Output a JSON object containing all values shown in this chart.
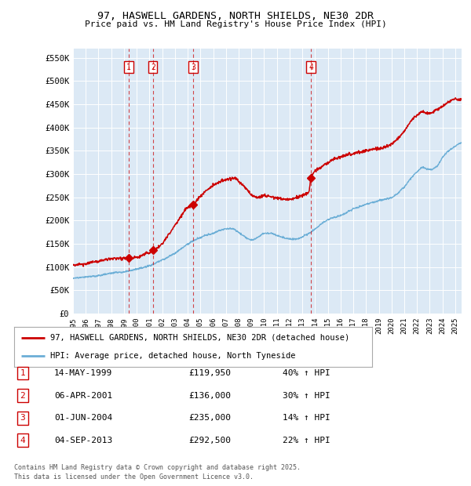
{
  "title": "97, HASWELL GARDENS, NORTH SHIELDS, NE30 2DR",
  "subtitle": "Price paid vs. HM Land Registry's House Price Index (HPI)",
  "ylim": [
    0,
    570000
  ],
  "yticks": [
    0,
    50000,
    100000,
    150000,
    200000,
    250000,
    300000,
    350000,
    400000,
    450000,
    500000,
    550000
  ],
  "ytick_labels": [
    "£0",
    "£50K",
    "£100K",
    "£150K",
    "£200K",
    "£250K",
    "£300K",
    "£350K",
    "£400K",
    "£450K",
    "£500K",
    "£550K"
  ],
  "hpi_color": "#6baed6",
  "price_color": "#cc0000",
  "plot_bg": "#dce9f5",
  "xmin": 1995,
  "xmax": 2025.5,
  "purchases": [
    {
      "label": "1",
      "date": "14-MAY-1999",
      "price": 119950,
      "price_str": "£119,950",
      "pct": "40%",
      "x_year": 1999.37
    },
    {
      "label": "2",
      "date": "06-APR-2001",
      "price": 136000,
      "price_str": "£136,000",
      "pct": "30%",
      "x_year": 2001.27
    },
    {
      "label": "3",
      "date": "01-JUN-2004",
      "price": 235000,
      "price_str": "£235,000",
      "pct": "14%",
      "x_year": 2004.42
    },
    {
      "label": "4",
      "date": "04-SEP-2013",
      "price": 292500,
      "price_str": "£292,500",
      "pct": "22%",
      "x_year": 2013.67
    }
  ],
  "legend_property": "97, HASWELL GARDENS, NORTH SHIELDS, NE30 2DR (detached house)",
  "legend_hpi": "HPI: Average price, detached house, North Tyneside",
  "footer1": "Contains HM Land Registry data © Crown copyright and database right 2025.",
  "footer2": "This data is licensed under the Open Government Licence v3.0.",
  "hpi_waypoints": [
    [
      1995.0,
      76000
    ],
    [
      1996.0,
      79000
    ],
    [
      1997.0,
      82000
    ],
    [
      1998.0,
      86000
    ],
    [
      1999.0,
      90000
    ],
    [
      2000.0,
      96000
    ],
    [
      2001.0,
      103000
    ],
    [
      2002.0,
      115000
    ],
    [
      2003.0,
      130000
    ],
    [
      2004.0,
      150000
    ],
    [
      2005.0,
      165000
    ],
    [
      2006.0,
      175000
    ],
    [
      2007.0,
      185000
    ],
    [
      2007.5,
      185000
    ],
    [
      2008.0,
      178000
    ],
    [
      2009.0,
      163000
    ],
    [
      2009.5,
      168000
    ],
    [
      2010.0,
      175000
    ],
    [
      2010.5,
      175000
    ],
    [
      2011.0,
      170000
    ],
    [
      2011.5,
      165000
    ],
    [
      2012.0,
      162000
    ],
    [
      2012.5,
      163000
    ],
    [
      2013.0,
      168000
    ],
    [
      2013.5,
      175000
    ],
    [
      2014.0,
      185000
    ],
    [
      2015.0,
      205000
    ],
    [
      2016.0,
      215000
    ],
    [
      2017.0,
      228000
    ],
    [
      2018.0,
      238000
    ],
    [
      2019.0,
      245000
    ],
    [
      2020.0,
      250000
    ],
    [
      2021.0,
      272000
    ],
    [
      2022.0,
      305000
    ],
    [
      2022.5,
      315000
    ],
    [
      2023.0,
      310000
    ],
    [
      2023.5,
      315000
    ],
    [
      2024.0,
      335000
    ],
    [
      2024.5,
      350000
    ],
    [
      2025.0,
      360000
    ],
    [
      2025.5,
      368000
    ]
  ],
  "price_waypoints": [
    [
      1995.0,
      104000
    ],
    [
      1995.5,
      106000
    ],
    [
      1996.0,
      108000
    ],
    [
      1996.5,
      111000
    ],
    [
      1997.0,
      113000
    ],
    [
      1997.5,
      116000
    ],
    [
      1998.0,
      117000
    ],
    [
      1998.5,
      118000
    ],
    [
      1999.0,
      119000
    ],
    [
      1999.37,
      119950
    ],
    [
      1999.5,
      120000
    ],
    [
      2000.0,
      122000
    ],
    [
      2000.5,
      128000
    ],
    [
      2001.0,
      133000
    ],
    [
      2001.27,
      136000
    ],
    [
      2001.5,
      139000
    ],
    [
      2002.0,
      152000
    ],
    [
      2002.5,
      170000
    ],
    [
      2003.0,
      190000
    ],
    [
      2003.5,
      212000
    ],
    [
      2004.0,
      230000
    ],
    [
      2004.42,
      235000
    ],
    [
      2004.5,
      237000
    ],
    [
      2005.0,
      255000
    ],
    [
      2005.5,
      268000
    ],
    [
      2006.0,
      278000
    ],
    [
      2006.5,
      285000
    ],
    [
      2007.0,
      290000
    ],
    [
      2007.5,
      292000
    ],
    [
      2007.8,
      293000
    ],
    [
      2008.0,
      286000
    ],
    [
      2008.5,
      275000
    ],
    [
      2009.0,
      258000
    ],
    [
      2009.5,
      252000
    ],
    [
      2010.0,
      256000
    ],
    [
      2010.5,
      254000
    ],
    [
      2011.0,
      252000
    ],
    [
      2011.5,
      248000
    ],
    [
      2012.0,
      248000
    ],
    [
      2012.5,
      252000
    ],
    [
      2013.0,
      258000
    ],
    [
      2013.5,
      264000
    ],
    [
      2013.67,
      292500
    ],
    [
      2014.0,
      310000
    ],
    [
      2014.5,
      320000
    ],
    [
      2015.0,
      328000
    ],
    [
      2015.5,
      335000
    ],
    [
      2016.0,
      340000
    ],
    [
      2016.5,
      345000
    ],
    [
      2017.0,
      348000
    ],
    [
      2017.5,
      352000
    ],
    [
      2018.0,
      355000
    ],
    [
      2018.5,
      358000
    ],
    [
      2019.0,
      360000
    ],
    [
      2019.5,
      363000
    ],
    [
      2020.0,
      368000
    ],
    [
      2020.5,
      380000
    ],
    [
      2021.0,
      395000
    ],
    [
      2021.5,
      415000
    ],
    [
      2022.0,
      428000
    ],
    [
      2022.5,
      435000
    ],
    [
      2023.0,
      432000
    ],
    [
      2023.5,
      438000
    ],
    [
      2024.0,
      445000
    ],
    [
      2024.5,
      455000
    ],
    [
      2025.0,
      462000
    ],
    [
      2025.5,
      460000
    ]
  ]
}
